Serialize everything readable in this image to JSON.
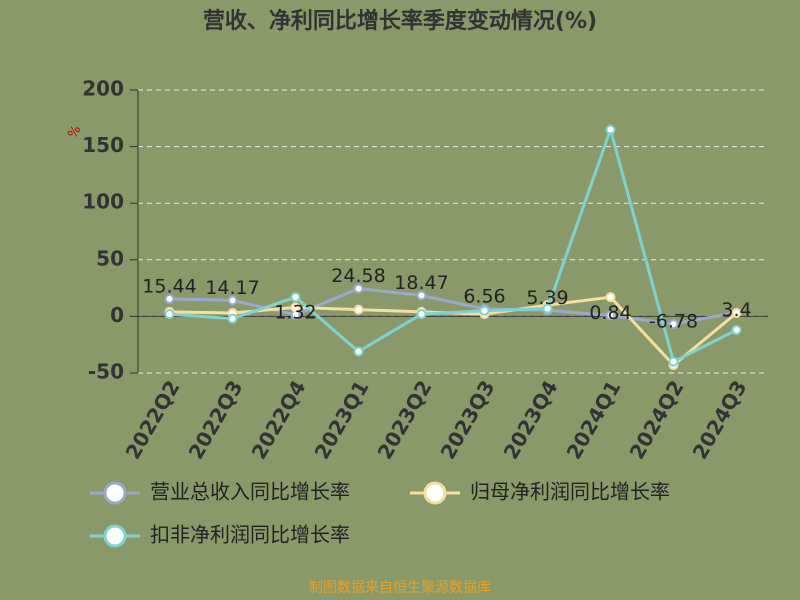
{
  "chart_data": {
    "type": "line",
    "title": "营收、净利同比增长率季度变动情况(%)",
    "y_label": "%",
    "source": "制图数据来自恒生聚源数据库",
    "categories": [
      "2022Q2",
      "2022Q3",
      "2022Q4",
      "2023Q1",
      "2023Q2",
      "2023Q3",
      "2023Q4",
      "2024Q1",
      "2024Q2",
      "2024Q3"
    ],
    "series": [
      {
        "name": "营业总收入同比增长率",
        "color": "#9aa8cc",
        "values": [
          15.44,
          14.17,
          1.32,
          24.58,
          18.47,
          6.56,
          5.39,
          0.84,
          -6.78,
          3.4
        ],
        "show_labels": true
      },
      {
        "name": "归母净利润同比增长率",
        "color": "#f3dfa0",
        "values": [
          4,
          3,
          8,
          6,
          4,
          2,
          10,
          17,
          -43,
          3
        ],
        "show_labels": false
      },
      {
        "name": "扣非净利润同比增长率",
        "color": "#7fd3cf",
        "values": [
          2,
          -2,
          17,
          -31,
          2,
          5,
          7,
          165,
          -40,
          -12
        ],
        "show_labels": false
      }
    ],
    "ylim": [
      -50,
      200
    ],
    "yticks": [
      -50,
      0,
      50,
      100,
      150,
      200
    ],
    "grid": true
  }
}
